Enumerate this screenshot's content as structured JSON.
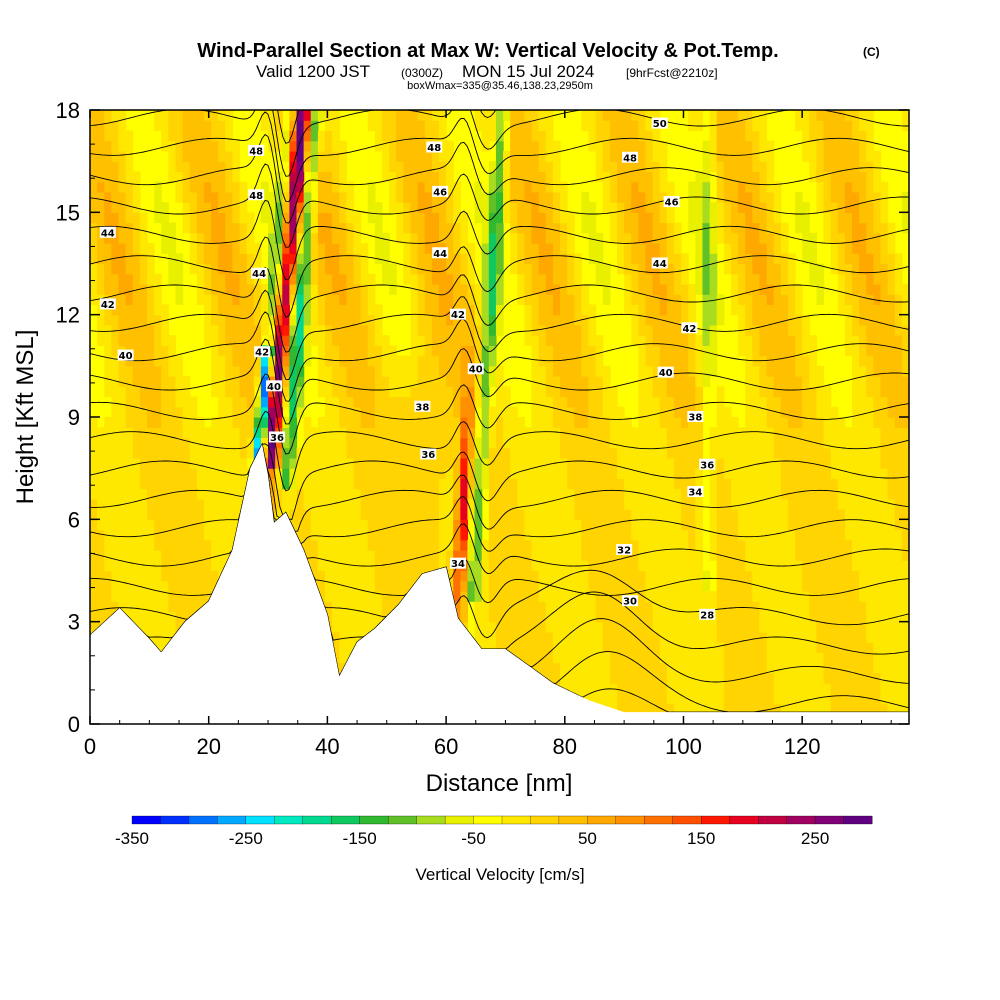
{
  "header": {
    "title_main": "Wind-Parallel Section at Max W: Vertical Velocity & Pot.Temp.",
    "title_copyright": "(C)",
    "valid_prefix": "Valid 1200 JST",
    "valid_utc": "(0300Z)",
    "valid_date": "MON 15 Jul 2024",
    "forecast": "[9hrFcst@2210z]",
    "box_info": "boxWmax=335@35.46,138.23,2950m"
  },
  "chart_data": {
    "type": "heatmap",
    "xlabel": "Distance [nm]",
    "ylabel": "Height [Kft MSL]",
    "xlim": [
      0,
      138
    ],
    "ylim": [
      0,
      18
    ],
    "x_ticks": [
      0,
      20,
      40,
      60,
      80,
      100,
      120
    ],
    "y_ticks": [
      0,
      3,
      6,
      9,
      12,
      15,
      18
    ],
    "colorbar": {
      "label": "Vertical Velocity [cm/s]",
      "min": -350,
      "max": 300,
      "step": 25,
      "tick_values": [
        -350,
        -250,
        -150,
        -50,
        50,
        150,
        250
      ],
      "colors": [
        "#0000ff",
        "#0030ff",
        "#0070ff",
        "#00a8ff",
        "#00e0ff",
        "#00e8c0",
        "#00d890",
        "#10c860",
        "#30b830",
        "#60c028",
        "#a8dc20",
        "#e8f000",
        "#ffff00",
        "#ffe800",
        "#ffd400",
        "#ffc000",
        "#ffa800",
        "#ff9000",
        "#ff7000",
        "#ff5000",
        "#ff1800",
        "#e80020",
        "#c00040",
        "#a00060",
        "#800078",
        "#600080"
      ]
    },
    "terrain": [
      [
        0,
        2.6
      ],
      [
        5,
        3.4
      ],
      [
        10,
        2.5
      ],
      [
        12,
        2.1
      ],
      [
        16,
        3.0
      ],
      [
        20,
        3.6
      ],
      [
        24,
        5.1
      ],
      [
        27,
        7.5
      ],
      [
        29,
        8.2
      ],
      [
        30,
        7.3
      ],
      [
        31,
        5.9
      ],
      [
        33,
        6.2
      ],
      [
        36,
        5.1
      ],
      [
        40,
        3.2
      ],
      [
        42,
        1.4
      ],
      [
        45,
        2.4
      ],
      [
        48,
        2.8
      ],
      [
        52,
        3.5
      ],
      [
        56,
        4.4
      ],
      [
        60,
        4.6
      ],
      [
        62,
        3.1
      ],
      [
        66,
        2.2
      ],
      [
        70,
        2.2
      ],
      [
        74,
        1.7
      ],
      [
        78,
        1.2
      ],
      [
        84,
        0.7
      ],
      [
        90,
        0.35
      ],
      [
        100,
        0.35
      ],
      [
        110,
        0.35
      ],
      [
        120,
        0.35
      ],
      [
        138,
        0.35
      ]
    ],
    "theta_levels": [
      28,
      29,
      30,
      31,
      32,
      33,
      34,
      35,
      36,
      37,
      38,
      39,
      40,
      41,
      42,
      43,
      44,
      45,
      46,
      47,
      48,
      49,
      50
    ],
    "contour_labels": [
      {
        "text": "50",
        "x": 96,
        "y": 17.6
      },
      {
        "text": "48",
        "x": 58,
        "y": 16.9
      },
      {
        "text": "48",
        "x": 91,
        "y": 16.6
      },
      {
        "text": "48",
        "x": 28,
        "y": 16.8
      },
      {
        "text": "46",
        "x": 59,
        "y": 15.6
      },
      {
        "text": "46",
        "x": 98,
        "y": 15.3
      },
      {
        "text": "48",
        "x": 28,
        "y": 15.5
      },
      {
        "text": "44",
        "x": 3,
        "y": 14.4
      },
      {
        "text": "44",
        "x": 59,
        "y": 13.8
      },
      {
        "text": "44",
        "x": 96,
        "y": 13.5
      },
      {
        "text": "44",
        "x": 28.5,
        "y": 13.2
      },
      {
        "text": "42",
        "x": 3,
        "y": 12.3
      },
      {
        "text": "42",
        "x": 62,
        "y": 12.0
      },
      {
        "text": "42",
        "x": 101,
        "y": 11.6
      },
      {
        "text": "42",
        "x": 29,
        "y": 10.9
      },
      {
        "text": "40",
        "x": 6,
        "y": 10.8
      },
      {
        "text": "40",
        "x": 65,
        "y": 10.4
      },
      {
        "text": "40",
        "x": 97,
        "y": 10.3
      },
      {
        "text": "40",
        "x": 31,
        "y": 9.9
      },
      {
        "text": "38",
        "x": 56,
        "y": 9.3
      },
      {
        "text": "38",
        "x": 102,
        "y": 9.0
      },
      {
        "text": "36",
        "x": 31.5,
        "y": 8.4
      },
      {
        "text": "36",
        "x": 57,
        "y": 7.9
      },
      {
        "text": "36",
        "x": 104,
        "y": 7.6
      },
      {
        "text": "34",
        "x": 102,
        "y": 6.8
      },
      {
        "text": "34",
        "x": 62,
        "y": 4.7
      },
      {
        "text": "32",
        "x": 90,
        "y": 5.1
      },
      {
        "text": "30",
        "x": 91,
        "y": 3.6
      },
      {
        "text": "28",
        "x": 104,
        "y": 3.2
      }
    ]
  }
}
